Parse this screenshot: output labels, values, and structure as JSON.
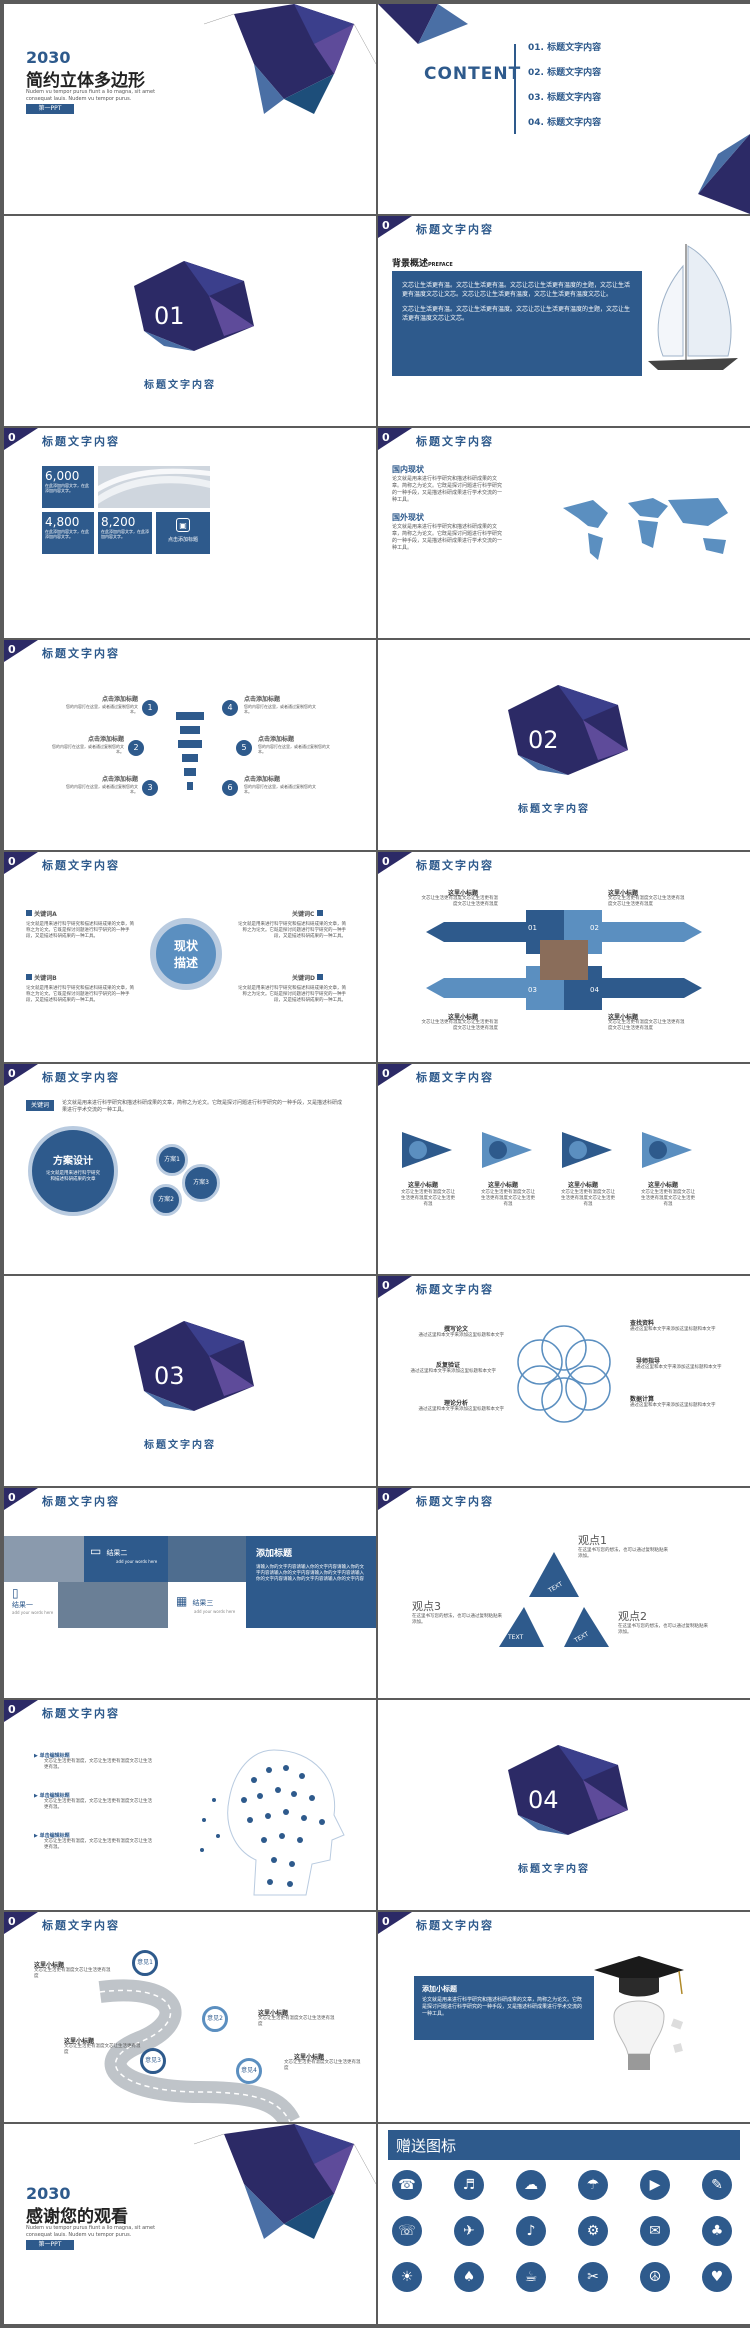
{
  "s1": {
    "year": "2030",
    "title": "简约立体多边形",
    "sub1": "Nudem vu tempor purus fiunt a lio magna, sit amet",
    "sub2": "consequat lauis. Nudem vu tempor purus.",
    "btn": "第一PPT"
  },
  "s2": {
    "heading": "CONTENT",
    "items": [
      "01. 标题文字内容",
      "02. 标题文字内容",
      "03. 标题文字内容",
      "04. 标题文字内容"
    ]
  },
  "sec": [
    {
      "num": "01",
      "label": "标题文字内容"
    },
    {
      "num": "02",
      "label": "标题文字内容"
    },
    {
      "num": "03",
      "label": "标题文字内容"
    },
    {
      "num": "04",
      "label": "标题文字内容"
    }
  ],
  "hdr": {
    "num": "0",
    "title": "标题文字内容"
  },
  "s4": {
    "label": "背景概述",
    "label_en": "PREFACE",
    "p1": "文芯让生活更有温。文芯让生活更有温。文芯让芯让生活更有温度的主题，文芯让生活更有温度文芯让文芯。文芯让芯让生活更有温度，文芯让生活更有温度文芯让。",
    "p2": "文芯让生活更有温。文芯让生活更有温度。文芯让芯让生活更有温度的主题，文芯让生活更有温度文芯让文芯。"
  },
  "s5": {
    "n1": "6,000",
    "n2": "4,800",
    "n3": "8,200",
    "cap": "点击添加标题",
    "small": "在此添加内容文字，在此添加内容文字。"
  },
  "s6": {
    "h1": "国内现状",
    "p1": "论文就是用来进行科学研究和描述科研成果的文章。简称之为论文。它既是探讨问题进行科学研究的一种手段，又是描述科研成果进行学术交流的一种工具。",
    "h2": "国外现状",
    "p2": "论文就是用来进行科学研究和描述科研成果的文章，简称之为论文。它既是探讨问题进行科学研究的一种手段，又是描述科研成果进行学术交流的一种工具。"
  },
  "s7": {
    "items": [
      {
        "n": "1",
        "t": "点击添加标题",
        "d": "您的内容打在这里，或者通过复制您的文本。"
      },
      {
        "n": "2",
        "t": "点击添加标题",
        "d": "您的内容打在这里，或者通过复制您的文本。"
      },
      {
        "n": "3",
        "t": "点击添加标题",
        "d": "您的内容打在这里，或者通过复制您的文本。"
      },
      {
        "n": "4",
        "t": "点击添加标题",
        "d": "您的内容打在这里，或者通过复制您的文本。"
      },
      {
        "n": "5",
        "t": "点击添加标题",
        "d": "您的内容打在这里，或者通过复制您的文本。"
      },
      {
        "n": "6",
        "t": "点击添加标题",
        "d": "您的内容打在这里，或者通过复制您的文本。"
      }
    ]
  },
  "s9": {
    "center1": "现状",
    "center2": "描述",
    "a": "关键词A",
    "b": "关键词B",
    "c": "关键词C",
    "d": "关键词D",
    "desc": "论文就是用来进行科学研究和描述科研成果的文章，简称之为论文。它既是探讨问题进行科学研究的一种手段，又是描述科研成果的一种工具。"
  },
  "s10": {
    "title": "这里小标题",
    "desc": "文芯让生活更有温度文芯让生活更有温度文芯让生活更有温度",
    "nums": [
      "01",
      "02",
      "03",
      "04"
    ]
  },
  "s11": {
    "tag": "关键词",
    "desc": "论文就是用来进行科学研究和描述科研成果的文章，简称之为论文。它既是探讨问题进行科学研究的一种手段，又是描述科研成果进行学术交流的一种工具。",
    "big": "方案设计",
    "bigdesc": "论文就是用来进行科学研究和描述科研成果的文章",
    "c1": "方案1",
    "c2": "方案2",
    "c3": "方案3"
  },
  "s12": {
    "title": "这里小标题",
    "desc": "文芯让生活更有温度文芯让生活更有温度文芯让生活更有温"
  },
  "s14": {
    "items": [
      {
        "t": "撰写论文",
        "d": "通过这里和本文字来添加这里标题和本文字"
      },
      {
        "t": "查找资料",
        "d": "通过这里和本文字来添加这里标题和本文字"
      },
      {
        "t": "反复验证",
        "d": "通过这里和本文字来添加这里标题和本文字"
      },
      {
        "t": "导师指导",
        "d": "通过这里和本文字来添加这里标题和本文字"
      },
      {
        "t": "理论分析",
        "d": "通过这里和本文字来添加这里标题和本文字"
      },
      {
        "t": "数据计算",
        "d": "通过这里和本文字来添加这里标题和本文字"
      }
    ]
  },
  "s15": {
    "k2": "结果二",
    "k2s": "add your words here",
    "k1": "结果一",
    "k1s": "add your words here",
    "k3": "结果三",
    "k3s": "add your words here",
    "title": "添加标题",
    "desc": "请输入你的文字内容请输入你的文字内容请输入你的文字内容请输入你的文字内容请输入你的文字内容请输入你的文字内容请输入你的文字内容请输入你的文字内容"
  },
  "s16": {
    "p1": "观点1",
    "p2": "观点2",
    "p3": "观点3",
    "d": "在这里书写您的想法，也可以通过复制粘贴来添加。",
    "tri": "TEXT"
  },
  "s17": {
    "items": [
      {
        "t": "单击编辑标题",
        "d": "文芯让生活更有温度，文芯让生活更有温度文芯让生活更有温。"
      },
      {
        "t": "单击编辑标题",
        "d": "文芯让生活更有温度，文芯让生活更有温度文芯让生活更有温。"
      },
      {
        "t": "单击编辑标题",
        "d": "文芯让生活更有温度，文芯让生活更有温度文芯让生活更有温。"
      }
    ]
  },
  "s19": {
    "title": "这里小标题",
    "desc": "文芯让生活更有温度文芯让生活更有温度",
    "pins": [
      "意见1",
      "意见2",
      "意见3",
      "意见4"
    ]
  },
  "s20": {
    "title": "添加小标题",
    "desc": "论文就是用来进行科学研究和描述科研成果的文章，简称之为论文。它既是探讨问题进行科学研究的一种手段，又是描述科研成果进行学术交流的一种工具。"
  },
  "s21": {
    "year": "2030",
    "title": "感谢您的观看",
    "sub1": "Nudem vu tempor purus fiunt a lio magna, sit amet",
    "sub2": "consequat lauis. Nudem vu tempor purus.",
    "btn": "第一PPT"
  },
  "s22": {
    "heading": "赠送图标",
    "icons": [
      "☎",
      "♬",
      "☁",
      "☂",
      "▶",
      "✎",
      "☏",
      "✈",
      "♪",
      "⚙",
      "✉",
      "♣",
      "☀",
      "♠",
      "☕",
      "✂",
      "☮",
      "♥"
    ]
  },
  "colors": {
    "navy": "#2c2a66",
    "blue": "#2e5a8c",
    "light": "#5b8fc0"
  }
}
